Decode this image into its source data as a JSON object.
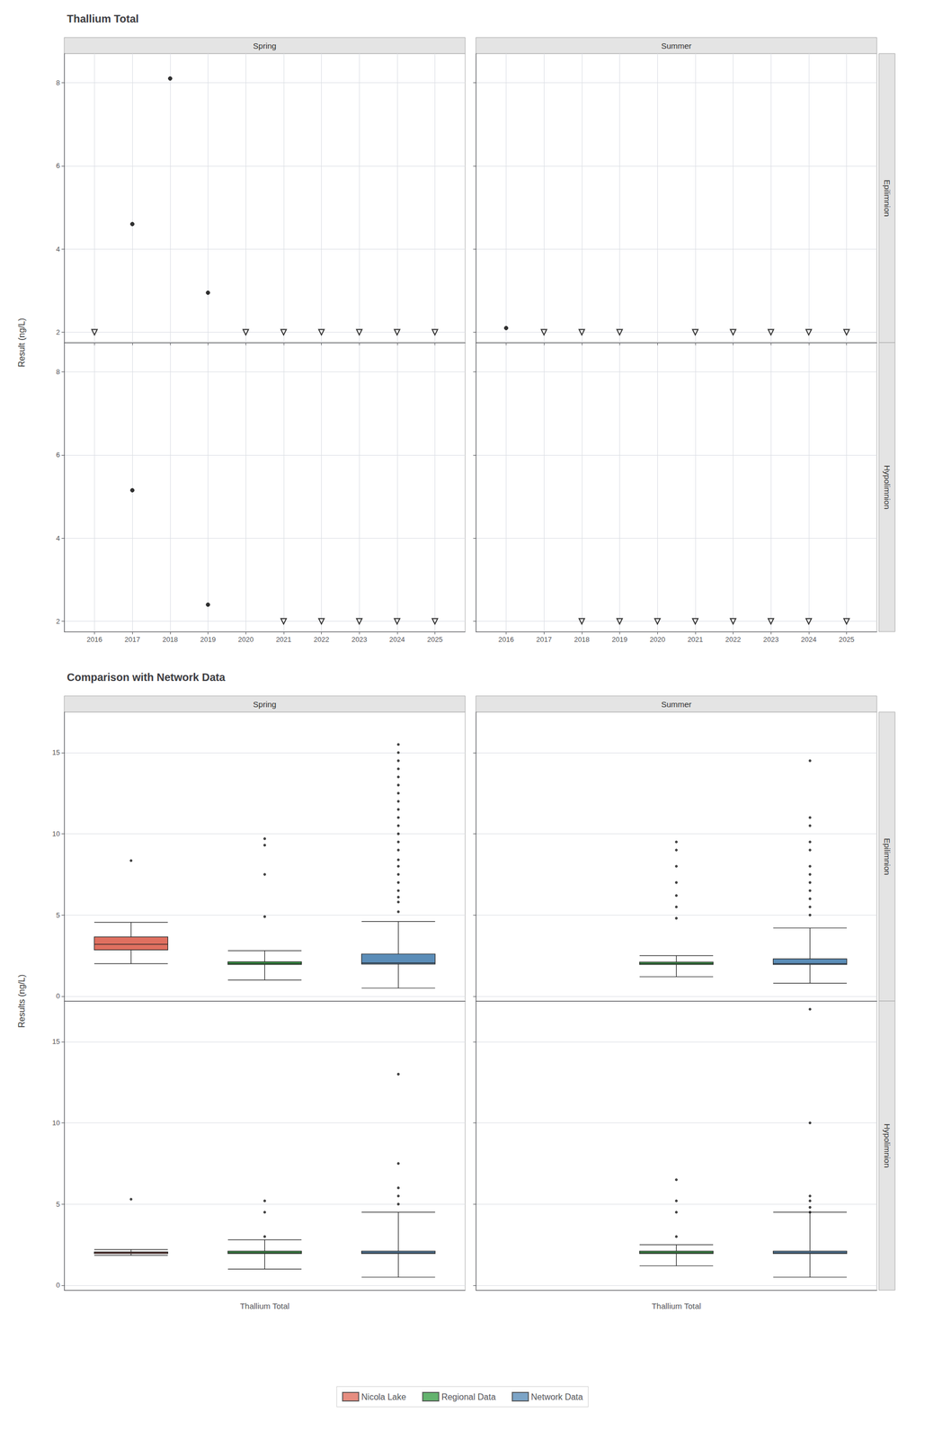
{
  "chart_data": [
    {
      "type": "scatter",
      "title": "Thallium Total",
      "ylabel": "Result (ng/L)",
      "columns": [
        "Spring",
        "Summer"
      ],
      "rows": [
        "Epilimnion",
        "Hypolimnion"
      ],
      "xlim": [
        2015.2,
        2025.8
      ],
      "xticks": [
        2016,
        2017,
        2018,
        2019,
        2020,
        2021,
        2022,
        2023,
        2024,
        2025
      ],
      "ylim": [
        1.75,
        8.7
      ],
      "yticks": [
        2,
        4,
        6,
        8
      ],
      "grid": true,
      "panels": [
        {
          "column": "Spring",
          "row": "Epilimnion",
          "series": [
            {
              "marker": "circle",
              "color": "black",
              "x": [
                2018,
                2017,
                2019
              ],
              "values": [
                8.1,
                4.6,
                2.95
              ]
            },
            {
              "marker": "triangle-down-open",
              "color": "black",
              "x": [
                2016,
                2020,
                2021,
                2022,
                2023,
                2024,
                2025
              ],
              "values": [
                2.0,
                2.0,
                2.0,
                2.0,
                2.0,
                2.0,
                2.0
              ]
            }
          ]
        },
        {
          "column": "Summer",
          "row": "Epilimnion",
          "series": [
            {
              "marker": "circle",
              "color": "black",
              "x": [
                2016
              ],
              "values": [
                2.1
              ]
            },
            {
              "marker": "triangle-down-open",
              "color": "black",
              "x": [
                2017,
                2018,
                2019,
                2021,
                2022,
                2023,
                2024,
                2025
              ],
              "values": [
                2.0,
                2.0,
                2.0,
                2.0,
                2.0,
                2.0,
                2.0,
                2.0
              ]
            }
          ]
        },
        {
          "column": "Spring",
          "row": "Hypolimnion",
          "series": [
            {
              "marker": "circle",
              "color": "black",
              "x": [
                2017,
                2019
              ],
              "values": [
                5.15,
                2.4
              ]
            },
            {
              "marker": "triangle-down-open",
              "color": "black",
              "x": [
                2021,
                2022,
                2023,
                2024,
                2025
              ],
              "values": [
                2.0,
                2.0,
                2.0,
                2.0,
                2.0
              ]
            }
          ]
        },
        {
          "column": "Summer",
          "row": "Hypolimnion",
          "series": [
            {
              "marker": "triangle-down-open",
              "color": "black",
              "x": [
                2018,
                2019,
                2020,
                2021,
                2022,
                2023,
                2024,
                2025
              ],
              "values": [
                2.0,
                2.0,
                2.0,
                2.0,
                2.0,
                2.0,
                2.0,
                2.0
              ]
            }
          ]
        }
      ]
    },
    {
      "type": "boxplot",
      "title": "Comparison with Network Data",
      "ylabel": "Results (ng/L)",
      "xlabel": "Thallium Total",
      "columns": [
        "Spring",
        "Summer"
      ],
      "rows": [
        "Epilimnion",
        "Hypolimnion"
      ],
      "ylim": [
        -0.3,
        17.5
      ],
      "yticks": [
        0,
        5,
        10,
        15
      ],
      "grid": "y",
      "tick_labels": "y",
      "legend": "bottom",
      "series": [
        {
          "name": "Nicola Lake",
          "color": "#E07060"
        },
        {
          "name": "Regional Data",
          "color": "#3DA04A"
        },
        {
          "name": "Network Data",
          "color": "#5B8DB8"
        }
      ],
      "panels": [
        {
          "column": "Spring",
          "row": "Epilimnion",
          "boxes": [
            {
              "name": "Nicola Lake",
              "whisker_lo": 2.0,
              "q1": 2.85,
              "median": 3.2,
              "q3": 3.65,
              "whisker_hi": 4.55,
              "outliers": [
                8.35
              ]
            },
            {
              "name": "Regional Data",
              "whisker_lo": 1.0,
              "q1": 1.95,
              "median": 2.0,
              "q3": 2.12,
              "whisker_hi": 2.8,
              "outliers": [
                4.9,
                7.5,
                9.3,
                9.7
              ]
            },
            {
              "name": "Network Data",
              "whisker_lo": 0.5,
              "q1": 1.98,
              "median": 2.05,
              "q3": 2.6,
              "whisker_hi": 4.6,
              "outliers": [
                5.2,
                5.8,
                6.1,
                6.5,
                7.0,
                7.5,
                8.0,
                8.4,
                9.0,
                9.5,
                10.0,
                10.5,
                11.0,
                11.5,
                12.0,
                12.5,
                13.0,
                13.5,
                14.0,
                14.5,
                15.0,
                15.5
              ]
            }
          ]
        },
        {
          "column": "Summer",
          "row": "Epilimnion",
          "boxes": [
            {
              "name": "Regional Data",
              "whisker_lo": 1.2,
              "q1": 1.95,
              "median": 2.0,
              "q3": 2.1,
              "whisker_hi": 2.5,
              "outliers": [
                4.8,
                5.5,
                6.2,
                7.0,
                8.0,
                9.0,
                9.5
              ]
            },
            {
              "name": "Network Data",
              "whisker_lo": 0.8,
              "q1": 1.95,
              "median": 2.0,
              "q3": 2.3,
              "whisker_hi": 4.2,
              "outliers": [
                5.0,
                5.5,
                6.0,
                6.5,
                7.0,
                7.5,
                8.0,
                9.0,
                9.5,
                10.5,
                11.0,
                14.5
              ]
            }
          ]
        },
        {
          "column": "Spring",
          "row": "Hypolimnion",
          "boxes": [
            {
              "name": "Nicola Lake",
              "whisker_lo": 1.85,
              "q1": 1.95,
              "median": 2.0,
              "q3": 2.05,
              "whisker_hi": 2.2,
              "outliers": [
                5.3
              ]
            },
            {
              "name": "Regional Data",
              "whisker_lo": 1.0,
              "q1": 1.95,
              "median": 2.0,
              "q3": 2.1,
              "whisker_hi": 2.8,
              "outliers": [
                3.0,
                4.5,
                5.2
              ]
            },
            {
              "name": "Network Data",
              "whisker_lo": 0.5,
              "q1": 1.95,
              "median": 2.0,
              "q3": 2.1,
              "whisker_hi": 4.5,
              "outliers": [
                5.0,
                5.5,
                6.0,
                7.5,
                13.0
              ]
            }
          ]
        },
        {
          "column": "Summer",
          "row": "Hypolimnion",
          "boxes": [
            {
              "name": "Regional Data",
              "whisker_lo": 1.2,
              "q1": 1.95,
              "median": 2.0,
              "q3": 2.1,
              "whisker_hi": 2.5,
              "outliers": [
                3.0,
                4.5,
                5.2,
                6.5
              ]
            },
            {
              "name": "Network Data",
              "whisker_lo": 0.5,
              "q1": 1.95,
              "median": 2.0,
              "q3": 2.1,
              "whisker_hi": 4.5,
              "outliers": [
                4.5,
                4.8,
                5.2,
                5.5,
                10.0,
                17.0
              ]
            }
          ]
        }
      ]
    }
  ]
}
